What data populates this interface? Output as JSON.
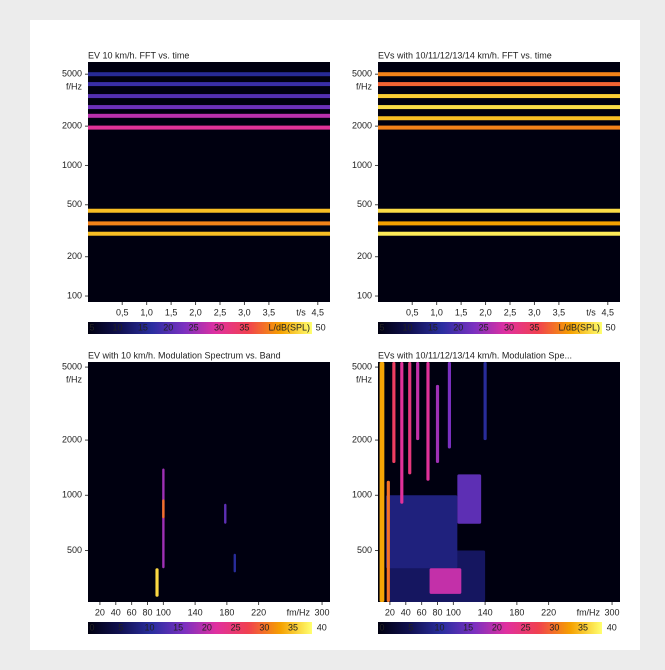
{
  "chart_data": [
    {
      "type": "spectrogram",
      "title": "EV 10 km/h. FFT vs. time",
      "xlabel": "t/s",
      "ylabel": "f/Hz",
      "xlim": [
        -0.2,
        4.75
      ],
      "xticks": [
        {
          "value": 0.5,
          "label": "0,5"
        },
        {
          "value": 1.0,
          "label": "1,0"
        },
        {
          "value": 1.5,
          "label": "1,5"
        },
        {
          "value": 2.0,
          "label": "2,0"
        },
        {
          "value": 2.5,
          "label": "2,5"
        },
        {
          "value": 3.0,
          "label": "3,0"
        },
        {
          "value": 3.5,
          "label": "3,5"
        },
        {
          "value": 4.5,
          "label": "4,5"
        }
      ],
      "ylim": [
        90,
        6200
      ],
      "yticks": [
        5000,
        2000,
        1000,
        500,
        200,
        100
      ],
      "log_y": true,
      "clim": [
        4.2,
        48.3
      ],
      "cticks": [
        5,
        10,
        15,
        20,
        25,
        30,
        35,
        50
      ],
      "clabel": "L/dB(SPL)",
      "colormap": [
        "#000010",
        "#101050",
        "#2a2ea0",
        "#7a30c0",
        "#e030a0",
        "#f04050",
        "#f5a000",
        "#ffff70"
      ],
      "bands": [
        {
          "f": 5000,
          "level": 16
        },
        {
          "f": 4200,
          "level": 18
        },
        {
          "f": 3400,
          "level": 20
        },
        {
          "f": 2800,
          "level": 22
        },
        {
          "f": 2400,
          "level": 27
        },
        {
          "f": 1950,
          "level": 30
        },
        {
          "f": 450,
          "level": 44
        },
        {
          "f": 360,
          "level": 40
        },
        {
          "f": 300,
          "level": 44
        }
      ]
    },
    {
      "type": "spectrogram",
      "title": "EVs with 10/11/12/13/14 km/h. FFT vs. time",
      "xlabel": "t/s",
      "ylabel": "f/Hz",
      "xlim": [
        -0.2,
        4.75
      ],
      "xticks": [
        {
          "value": 0.5,
          "label": "0,5"
        },
        {
          "value": 1.0,
          "label": "1,0"
        },
        {
          "value": 1.5,
          "label": "1,5"
        },
        {
          "value": 2.0,
          "label": "2,0"
        },
        {
          "value": 2.5,
          "label": "2,5"
        },
        {
          "value": 3.0,
          "label": "3,0"
        },
        {
          "value": 3.5,
          "label": "3,5"
        },
        {
          "value": 4.5,
          "label": "4,5"
        }
      ],
      "ylim": [
        90,
        6200
      ],
      "yticks": [
        5000,
        2000,
        1000,
        500,
        200,
        100
      ],
      "log_y": true,
      "clim": [
        4.2,
        48.3
      ],
      "cticks": [
        5,
        10,
        15,
        20,
        25,
        30,
        35,
        50
      ],
      "clabel": "L/dB(SPL)",
      "colormap": [
        "#000010",
        "#101050",
        "#2a2ea0",
        "#7a30c0",
        "#e030a0",
        "#f04050",
        "#f5a000",
        "#ffff70"
      ],
      "bands": [
        {
          "f": 5000,
          "level": 40
        },
        {
          "f": 4200,
          "level": 38
        },
        {
          "f": 3400,
          "level": 45
        },
        {
          "f": 2800,
          "level": 46
        },
        {
          "f": 2300,
          "level": 44
        },
        {
          "f": 1950,
          "level": 40
        },
        {
          "f": 450,
          "level": 46
        },
        {
          "f": 360,
          "level": 42
        },
        {
          "f": 300,
          "level": 47
        }
      ]
    },
    {
      "type": "modulation",
      "title": "EV with 10 km/h. Modulation Spectrum vs. Band",
      "xlabel": "fm/Hz",
      "ylabel": "f/Hz",
      "xlim": [
        5,
        310
      ],
      "xticks": [
        20,
        40,
        60,
        80,
        100,
        140,
        180,
        220,
        300
      ],
      "ylim": [
        262,
        5330
      ],
      "yticks": [
        5000,
        2000,
        1000,
        500
      ],
      "log_y": true,
      "clim": [
        -0.7,
        38.3
      ],
      "cticks": [
        0,
        5,
        10,
        15,
        20,
        25,
        30,
        35,
        40
      ],
      "colormap": [
        "#000010",
        "#101050",
        "#2a2ea0",
        "#7a30c0",
        "#e030a0",
        "#f04050",
        "#f5a000",
        "#ffff70"
      ],
      "streaks": [
        {
          "fm": 100,
          "width": 3,
          "f_low": 400,
          "f_high": 1400,
          "level": 18
        },
        {
          "fm": 100,
          "width": 3,
          "f_low": 750,
          "f_high": 950,
          "level": 30
        },
        {
          "fm": 92,
          "width": 4,
          "f_low": 280,
          "f_high": 400,
          "level": 36
        },
        {
          "fm": 178,
          "width": 3,
          "f_low": 700,
          "f_high": 900,
          "level": 14
        },
        {
          "fm": 190,
          "width": 3,
          "f_low": 380,
          "f_high": 480,
          "level": 10
        }
      ]
    },
    {
      "type": "modulation",
      "title": "EVs with 10/11/12/13/14 km/h. Modulation Spe...",
      "xlabel": "fm/Hz",
      "ylabel": "f/Hz",
      "xlim": [
        5,
        310
      ],
      "xticks": [
        20,
        40,
        60,
        80,
        100,
        140,
        180,
        220,
        300
      ],
      "ylim": [
        262,
        5330
      ],
      "yticks": [
        5000,
        2000,
        1000,
        500
      ],
      "log_y": true,
      "clim": [
        -0.7,
        38.3
      ],
      "cticks": [
        0,
        5,
        10,
        15,
        20,
        25,
        30,
        35,
        40
      ],
      "colormap": [
        "#000010",
        "#101050",
        "#2a2ea0",
        "#7a30c0",
        "#e030a0",
        "#f04050",
        "#f5a000",
        "#ffff70"
      ],
      "streaks": [
        {
          "fm": 80,
          "width": 120,
          "f_low": 262,
          "f_high": 500,
          "level": 6
        },
        {
          "fm": 60,
          "width": 90,
          "f_low": 400,
          "f_high": 1000,
          "level": 8
        },
        {
          "fm": 120,
          "width": 30,
          "f_low": 700,
          "f_high": 1300,
          "level": 14
        },
        {
          "fm": 90,
          "width": 40,
          "f_low": 290,
          "f_high": 400,
          "level": 20
        },
        {
          "fm": 10,
          "width": 6,
          "f_low": 262,
          "f_high": 5330,
          "level": 33
        },
        {
          "fm": 18,
          "width": 4,
          "f_low": 262,
          "f_high": 1200,
          "level": 30
        },
        {
          "fm": 25,
          "width": 4,
          "f_low": 1500,
          "f_high": 5330,
          "level": 26
        },
        {
          "fm": 35,
          "width": 4,
          "f_low": 900,
          "f_high": 5330,
          "level": 22
        },
        {
          "fm": 45,
          "width": 4,
          "f_low": 1300,
          "f_high": 5330,
          "level": 24
        },
        {
          "fm": 55,
          "width": 4,
          "f_low": 2000,
          "f_high": 5330,
          "level": 20
        },
        {
          "fm": 68,
          "width": 4,
          "f_low": 1200,
          "f_high": 5330,
          "level": 22
        },
        {
          "fm": 80,
          "width": 4,
          "f_low": 1500,
          "f_high": 4000,
          "level": 18
        },
        {
          "fm": 95,
          "width": 4,
          "f_low": 1800,
          "f_high": 5330,
          "level": 16
        },
        {
          "fm": 140,
          "width": 4,
          "f_low": 2000,
          "f_high": 5330,
          "level": 10
        }
      ]
    }
  ]
}
